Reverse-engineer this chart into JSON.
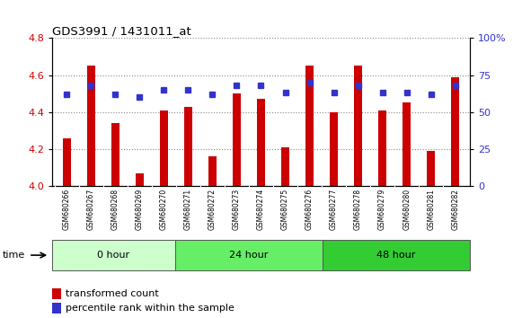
{
  "title": "GDS3991 / 1431011_at",
  "samples": [
    "GSM680266",
    "GSM680267",
    "GSM680268",
    "GSM680269",
    "GSM680270",
    "GSM680271",
    "GSM680272",
    "GSM680273",
    "GSM680274",
    "GSM680275",
    "GSM680276",
    "GSM680277",
    "GSM680278",
    "GSM680279",
    "GSM680280",
    "GSM680281",
    "GSM680282"
  ],
  "transformed_count": [
    4.26,
    4.65,
    4.34,
    4.07,
    4.41,
    4.43,
    4.16,
    4.5,
    4.47,
    4.21,
    4.65,
    4.4,
    4.65,
    4.41,
    4.45,
    4.19,
    4.59
  ],
  "percentile_rank": [
    62,
    68,
    62,
    60,
    65,
    65,
    62,
    68,
    68,
    63,
    70,
    63,
    68,
    63,
    63,
    62,
    68
  ],
  "ylim_left": [
    4.0,
    4.8
  ],
  "ylim_right": [
    0,
    100
  ],
  "yticks_left": [
    4.0,
    4.2,
    4.4,
    4.6,
    4.8
  ],
  "yticks_right": [
    0,
    25,
    50,
    75,
    100
  ],
  "ytick_labels_right": [
    "0",
    "25",
    "50",
    "75",
    "100%"
  ],
  "bar_color": "#cc0000",
  "dot_color": "#3333cc",
  "group_colors": [
    "#ccffcc",
    "#66ee66",
    "#33cc33"
  ],
  "groups": [
    {
      "label": "0 hour",
      "start": 0,
      "end": 5
    },
    {
      "label": "24 hour",
      "start": 5,
      "end": 11
    },
    {
      "label": "48 hour",
      "start": 11,
      "end": 17
    }
  ],
  "time_label": "time",
  "legend_bar_label": "transformed count",
  "legend_dot_label": "percentile rank within the sample",
  "plot_bg": "#ffffff",
  "tick_bg": "#d0d0d0",
  "bar_width": 0.35
}
